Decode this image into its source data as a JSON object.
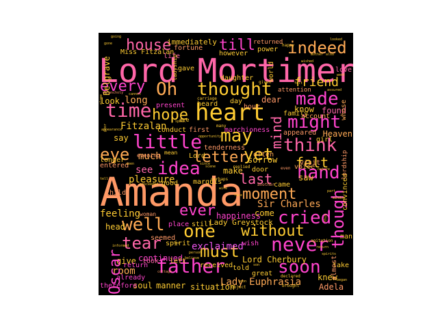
{
  "palette": {
    "background": "#000000",
    "colors": [
      "#ff66a8",
      "#ff9966",
      "#ffcc33",
      "#ff44cc",
      "#ffaa55",
      "#ee55ee"
    ]
  },
  "cloud": {
    "words": [
      {
        "id": "amanda",
        "text": "Amanda",
        "color": "#ff9966"
      },
      {
        "id": "lord-mortimer",
        "text": "Lord Mortimer",
        "color": "#ff66a8"
      },
      {
        "id": "heart",
        "text": "heart",
        "color": "#ffcc33"
      },
      {
        "id": "thought",
        "text": "thought",
        "color": "#ffcc33"
      },
      {
        "id": "father",
        "text": "father",
        "color": "#ff44cc"
      },
      {
        "id": "never",
        "text": "never",
        "color": "#ff44cc"
      },
      {
        "id": "little",
        "text": "little",
        "color": "#ff44cc"
      },
      {
        "id": "time",
        "text": "time",
        "color": "#ff66a8"
      },
      {
        "id": "one",
        "text": "one",
        "color": "#ffcc33"
      },
      {
        "id": "may",
        "text": "may",
        "color": "#ffcc33"
      },
      {
        "id": "might",
        "text": "might",
        "color": "#ff44cc"
      },
      {
        "id": "think",
        "text": "think",
        "color": "#ff66a8"
      },
      {
        "id": "idea",
        "text": "idea",
        "color": "#ff44cc"
      },
      {
        "id": "hand",
        "text": "hand",
        "color": "#ff44cc"
      },
      {
        "id": "cried",
        "text": "cried",
        "color": "#ff44cc"
      },
      {
        "id": "soon",
        "text": "soon",
        "color": "#ff44cc"
      },
      {
        "id": "made",
        "text": "made",
        "color": "#ff44cc"
      },
      {
        "id": "well",
        "text": "well",
        "color": "#ffaa55"
      },
      {
        "id": "oh",
        "text": "Oh",
        "color": "#ffaa55"
      },
      {
        "id": "yet",
        "text": "yet",
        "color": "#ffcc33"
      },
      {
        "id": "must",
        "text": "must",
        "color": "#ffcc33"
      },
      {
        "id": "tear",
        "text": "tear",
        "color": "#ff66a8"
      },
      {
        "id": "every",
        "text": "every",
        "color": "#ff44cc"
      },
      {
        "id": "eye",
        "text": "eye",
        "color": "#ffaa55"
      },
      {
        "id": "hope",
        "text": "hope",
        "color": "#ffcc33"
      },
      {
        "id": "indeed",
        "text": "indeed",
        "color": "#ffaa55"
      },
      {
        "id": "house",
        "text": "house",
        "color": "#ff66a8"
      },
      {
        "id": "ever",
        "text": "ever",
        "color": "#ff44cc"
      },
      {
        "id": "moment",
        "text": "moment",
        "color": "#ffaa55"
      },
      {
        "id": "letter",
        "text": "letter",
        "color": "#ffaa55"
      },
      {
        "id": "without",
        "text": "without",
        "color": "#ffcc33"
      },
      {
        "id": "exclaimed",
        "text": "exclaimed",
        "color": "#ee55ee"
      },
      {
        "id": "felt",
        "text": "felt",
        "color": "#ffcc33"
      },
      {
        "id": "last",
        "text": "last",
        "color": "#ff66a8"
      },
      {
        "id": "till",
        "text": "till",
        "color": "#ff44cc"
      },
      {
        "id": "friend",
        "text": "friend",
        "color": "#ffcc33"
      },
      {
        "id": "fitzalan",
        "text": "Fitzalan",
        "color": "#ffcc33"
      },
      {
        "id": "sir-charles",
        "text": "Sir Charles",
        "color": "#ffaa55"
      },
      {
        "id": "lady-euphrasia",
        "text": "Lady Euphrasia",
        "color": "#ffaa55"
      },
      {
        "id": "much",
        "text": "much",
        "color": "#ffaa55"
      },
      {
        "id": "see",
        "text": "see",
        "color": "#ff66a8"
      },
      {
        "id": "feeling",
        "text": "feeling",
        "color": "#ffcc33"
      },
      {
        "id": "pleasure",
        "text": "pleasure",
        "color": "#ffcc33"
      },
      {
        "id": "long",
        "text": "long",
        "color": "#ffaa55"
      },
      {
        "id": "room",
        "text": "room",
        "color": "#ffaa55"
      },
      {
        "id": "soul",
        "text": "soul",
        "color": "#ffcc33"
      },
      {
        "id": "manner",
        "text": "manner",
        "color": "#ffcc33"
      },
      {
        "id": "situation",
        "text": "situation",
        "color": "#ffcc33"
      },
      {
        "id": "adela",
        "text": "Adela",
        "color": "#ff9966"
      },
      {
        "id": "knew",
        "text": "knew",
        "color": "#ffcc33"
      },
      {
        "id": "lord-cherbury",
        "text": "Lord Cherbury",
        "color": "#ffcc33"
      },
      {
        "id": "happiness",
        "text": "happiness",
        "color": "#ff44cc"
      },
      {
        "id": "lady-greystock",
        "text": "Lady Greystock",
        "color": "#ffcc33"
      },
      {
        "id": "immediately",
        "text": "immediately",
        "color": "#ffcc33"
      },
      {
        "id": "miss-fitzalan",
        "text": "Miss Fitzalan",
        "color": "#ffcc33"
      },
      {
        "id": "fortune",
        "text": "fortune",
        "color": "#ff9966"
      },
      {
        "id": "life",
        "text": "life",
        "color": "#ff66a8"
      },
      {
        "id": "however",
        "text": "however",
        "color": "#ffcc33"
      },
      {
        "id": "returned",
        "text": "returned",
        "color": "#ff9966"
      },
      {
        "id": "power",
        "text": "power",
        "color": "#ffcc33"
      },
      {
        "id": "present",
        "text": "present",
        "color": "#ff44cc"
      },
      {
        "id": "heard",
        "text": "heard",
        "color": "#ffcc33"
      },
      {
        "id": "day",
        "text": "day",
        "color": "#ffcc33"
      },
      {
        "id": "hour",
        "text": "hour",
        "color": "#ff9966"
      },
      {
        "id": "dear",
        "text": "dear",
        "color": "#ff9966"
      },
      {
        "id": "attention",
        "text": "attention",
        "color": "#ff9966"
      },
      {
        "id": "know",
        "text": "know",
        "color": "#ffcc33"
      },
      {
        "id": "found",
        "text": "found",
        "color": "#ff66a8"
      },
      {
        "id": "heaven",
        "text": "Heaven",
        "color": "#ffaa55"
      },
      {
        "id": "look",
        "text": "look",
        "color": "#ffcc33"
      },
      {
        "id": "first",
        "text": "first",
        "color": "#ff9966"
      },
      {
        "id": "marchioness",
        "text": "marchioness",
        "color": "#ff44cc"
      },
      {
        "id": "appeared",
        "text": "appeared",
        "color": "#ff9966"
      },
      {
        "id": "family",
        "text": "family",
        "color": "#ffcc33"
      },
      {
        "id": "say",
        "text": "say",
        "color": "#ffcc33"
      },
      {
        "id": "longer",
        "text": "longer",
        "color": "#ffcc33"
      },
      {
        "id": "entered",
        "text": "entered",
        "color": "#ff9966"
      },
      {
        "id": "tenderness",
        "text": "tenderness",
        "color": "#ff9966"
      },
      {
        "id": "sorrow",
        "text": "sorrow",
        "color": "#ffcc33"
      },
      {
        "id": "visit",
        "text": "visit",
        "color": "#ff9966"
      },
      {
        "id": "child",
        "text": "child",
        "color": "#ff9966"
      },
      {
        "id": "make",
        "text": "make",
        "color": "#ffcc33"
      },
      {
        "id": "door",
        "text": "door",
        "color": "#ffcc33"
      },
      {
        "id": "saw",
        "text": "saw",
        "color": "#ffcc33"
      },
      {
        "id": "came",
        "text": "came",
        "color": "#ffcc33"
      },
      {
        "id": "come",
        "text": "come",
        "color": "#ffcc33"
      },
      {
        "id": "voice",
        "text": "voice",
        "color": "#ffaa55"
      },
      {
        "id": "marquis",
        "text": "marquis",
        "color": "#ffcc33"
      },
      {
        "id": "lord",
        "text": "Lord",
        "color": "#ffcc33"
      },
      {
        "id": "good",
        "text": "good",
        "color": "#ffcc33"
      },
      {
        "id": "head",
        "text": "head",
        "color": "#ffcc33"
      },
      {
        "id": "place",
        "text": "place",
        "color": "#ff44cc"
      },
      {
        "id": "still",
        "text": "still",
        "color": "#ffcc33"
      },
      {
        "id": "spirit",
        "text": "spirit",
        "color": "#ffcc33"
      },
      {
        "id": "seemed",
        "text": "seemed",
        "color": "#ff9966"
      },
      {
        "id": "continued",
        "text": "continued",
        "color": "#ff44cc"
      },
      {
        "id": "give",
        "text": "give",
        "color": "#ffcc33"
      },
      {
        "id": "return",
        "text": "return",
        "color": "#ff44cc"
      },
      {
        "id": "already",
        "text": "already",
        "color": "#ff44cc"
      },
      {
        "id": "therefore",
        "text": "therefore",
        "color": "#ff44cc"
      },
      {
        "id": "received",
        "text": "received",
        "color": "#ffcc33"
      },
      {
        "id": "told",
        "text": "told",
        "color": "#ffcc33"
      },
      {
        "id": "wish",
        "text": "wish",
        "color": "#ff44cc"
      },
      {
        "id": "great",
        "text": "great",
        "color": "#ffcc33"
      },
      {
        "id": "take",
        "text": "take",
        "color": "#ffcc33"
      },
      {
        "id": "took",
        "text": "took",
        "color": "#ff66a8"
      },
      {
        "id": "left",
        "text": "left",
        "color": "#ffcc33"
      },
      {
        "id": "man",
        "text": "man",
        "color": "#ffcc33"
      },
      {
        "id": "daughter",
        "text": "daughter",
        "color": "#ffcc33"
      },
      {
        "id": "conduct",
        "text": "conduct",
        "color": "#ffcc33"
      },
      {
        "id": "girl",
        "text": "girl",
        "color": "#ffcc33"
      },
      {
        "id": "account",
        "text": "account",
        "color": "#ffaa55"
      },
      {
        "id": "often",
        "text": "often",
        "color": "#ffaa55"
      },
      {
        "id": "evening",
        "text": "evening",
        "color": "#ff9966"
      },
      {
        "id": "gave",
        "text": "gave",
        "color": "#ffcc33"
      },
      {
        "id": "love",
        "text": "love",
        "color": "#ff66a8"
      },
      {
        "id": "woman",
        "text": "woman",
        "color": "#ff9966"
      },
      {
        "id": "oscar",
        "text": "Oscar",
        "color": "#ff44cc"
      },
      {
        "id": "though",
        "text": "though",
        "color": "#ff44cc"
      },
      {
        "id": "mind",
        "text": "mind",
        "color": "#ff66a8"
      },
      {
        "id": "belgrave",
        "text": "Belgrave",
        "color": "#ffcc33"
      },
      {
        "id": "whose",
        "text": "whose",
        "color": "#ffaa55"
      },
      {
        "id": "convinced",
        "text": "convinced",
        "color": "#ffcc33"
      },
      {
        "id": "almost",
        "text": "almost",
        "color": "#ff9966"
      },
      {
        "id": "lordship",
        "text": "lordship",
        "color": "#ff9966"
      },
      {
        "id": "world",
        "text": "world",
        "color": "#ffcc33"
      },
      {
        "id": "ladyship",
        "text": "ladyship",
        "color": "#ffcc33"
      },
      {
        "id": "mean",
        "text": "mean",
        "color": "#ffcc33"
      },
      {
        "id": "opportunity",
        "text": "opportunity",
        "color": "#ffcc33"
      },
      {
        "id": "carriage",
        "text": "carriage",
        "color": "#ffcc33"
      },
      {
        "id": "replied",
        "text": "replied",
        "color": "#ffcc33"
      },
      {
        "id": "ere",
        "text": "ere",
        "color": "#ffcc33"
      },
      {
        "id": "many",
        "text": "many",
        "color": "#ffcc33"
      },
      {
        "id": "another",
        "text": "another",
        "color": "#ff9966"
      },
      {
        "id": "perhaps",
        "text": "perhaps",
        "color": "#ffcc33"
      },
      {
        "id": "cottage",
        "text": "cottage",
        "color": "#ff9966"
      },
      {
        "id": "object",
        "text": "object",
        "color": "#ffcc33"
      },
      {
        "id": "brought",
        "text": "brought",
        "color": "#ffcc33"
      },
      {
        "id": "even",
        "text": "even",
        "color": "#ff9966"
      },
      {
        "id": "agitation",
        "text": "agitation",
        "color": "#ffcc33"
      },
      {
        "id": "began",
        "text": "began",
        "color": "#ffcc33"
      },
      {
        "id": "assured",
        "text": "assured",
        "color": "#ffcc33"
      },
      {
        "id": "declared",
        "text": "declared",
        "color": "#ffcc33"
      },
      {
        "id": "happy",
        "text": "happy",
        "color": "#ffcc33"
      },
      {
        "id": "given",
        "text": "given",
        "color": "#ffcc33"
      },
      {
        "id": "went",
        "text": "went",
        "color": "#ffcc33"
      },
      {
        "id": "scene",
        "text": "scene",
        "color": "#ffcc33"
      },
      {
        "id": "face",
        "text": "face",
        "color": "#ffcc33"
      },
      {
        "id": "nature",
        "text": "nature",
        "color": "#ffcc33"
      },
      {
        "id": "part",
        "text": "part",
        "color": "#ffcc33"
      },
      {
        "id": "window",
        "text": "window",
        "color": "#ffcc33"
      },
      {
        "id": "melancholy",
        "text": "melancholy",
        "color": "#ff9966"
      },
      {
        "id": "appearance",
        "text": "appearance",
        "color": "#ffcc33"
      },
      {
        "id": "believe",
        "text": "believe",
        "color": "#ffcc33"
      },
      {
        "id": "person",
        "text": "person",
        "color": "#ffcc33"
      },
      {
        "id": "seen",
        "text": "seen",
        "color": "#ffcc33"
      },
      {
        "id": "cannot",
        "text": "cannot",
        "color": "#ffcc33"
      },
      {
        "id": "alone",
        "text": "alone",
        "color": "#ffcc33"
      },
      {
        "id": "looked",
        "text": "looked",
        "color": "#ffcc33"
      },
      {
        "id": "tell",
        "text": "tell",
        "color": "#ffcc33"
      },
      {
        "id": "bed",
        "text": "bed",
        "color": "#ffcc33"
      },
      {
        "id": "informed",
        "text": "informed",
        "color": "#ffcc33"
      },
      {
        "id": "son",
        "text": "son",
        "color": "#ffcc33"
      },
      {
        "id": "gone",
        "text": "gone",
        "color": "#ffcc33"
      },
      {
        "id": "wished",
        "text": "wished",
        "color": "#ffcc33"
      },
      {
        "id": "mother",
        "text": "mother",
        "color": "#ffcc33"
      },
      {
        "id": "also",
        "text": "also",
        "color": "#ffcc33"
      },
      {
        "id": "thus",
        "text": "thus",
        "color": "#ffcc33"
      },
      {
        "id": "poor",
        "text": "poor",
        "color": "#ffcc33"
      },
      {
        "id": "proceeded",
        "text": "proceeded",
        "color": "#ffcc33"
      },
      {
        "id": "since",
        "text": "since",
        "color": "#ffcc33"
      },
      {
        "id": "felt-small",
        "text": "felt",
        "color": "#ffcc33"
      },
      {
        "id": "speak",
        "text": "speak",
        "color": "#ffcc33"
      },
      {
        "id": "going",
        "text": "going",
        "color": "#ffcc33"
      },
      {
        "id": "soon-small",
        "text": "soon",
        "color": "#ffcc33"
      },
      {
        "id": "wife",
        "text": "wife",
        "color": "#ffcc33"
      },
      {
        "id": "spirits",
        "text": "spirits",
        "color": "#ffcc33"
      },
      {
        "id": "return-small",
        "text": "return",
        "color": "#ffcc33"
      }
    ]
  }
}
